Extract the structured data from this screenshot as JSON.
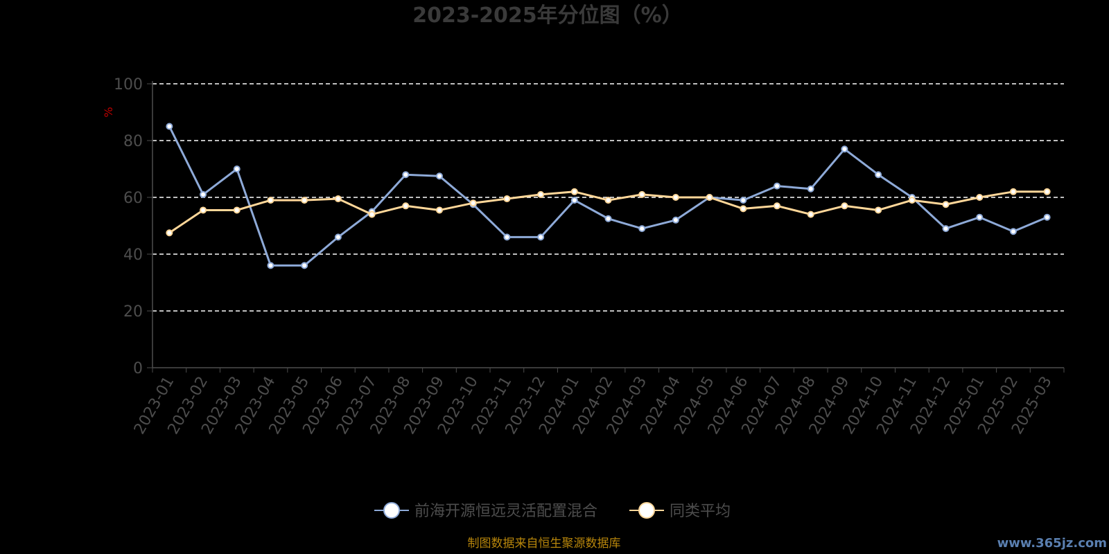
{
  "chart_data": {
    "type": "line",
    "title": "2023-2025年分位图（%）",
    "ylabel": "%",
    "ylim": [
      0,
      100
    ],
    "yticks": [
      0,
      20,
      40,
      60,
      80,
      100
    ],
    "grid": true,
    "legend_position": "bottom",
    "categories": [
      "2023-01",
      "2023-02",
      "2023-03",
      "2023-04",
      "2023-05",
      "2023-06",
      "2023-07",
      "2023-08",
      "2023-09",
      "2023-10",
      "2023-11",
      "2023-12",
      "2024-01",
      "2024-02",
      "2024-03",
      "2024-04",
      "2024-05",
      "2024-06",
      "2024-07",
      "2024-08",
      "2024-09",
      "2024-10",
      "2024-11",
      "2024-12",
      "2025-01",
      "2025-02",
      "2025-03"
    ],
    "series": [
      {
        "name": "前海开源恒远灵活配置混合",
        "color": "#8eaad8",
        "values": [
          85,
          61,
          70,
          36,
          36,
          46,
          55,
          68,
          67.5,
          57.5,
          46,
          46,
          59,
          52.5,
          49,
          52,
          60,
          59,
          64,
          63,
          77,
          68,
          60,
          49,
          53,
          48,
          53
        ]
      },
      {
        "name": "同类平均",
        "color": "#ffd799",
        "values": [
          47.5,
          55.5,
          55.5,
          59,
          59,
          59.5,
          54,
          57,
          55.5,
          58,
          59.5,
          61,
          62,
          59,
          61,
          60,
          60,
          56,
          57,
          54,
          57,
          55.5,
          59,
          57.5,
          60,
          62,
          62
        ]
      }
    ]
  },
  "source": "制图数据来自恒生聚源数据库",
  "watermark": "www.365jz.com"
}
